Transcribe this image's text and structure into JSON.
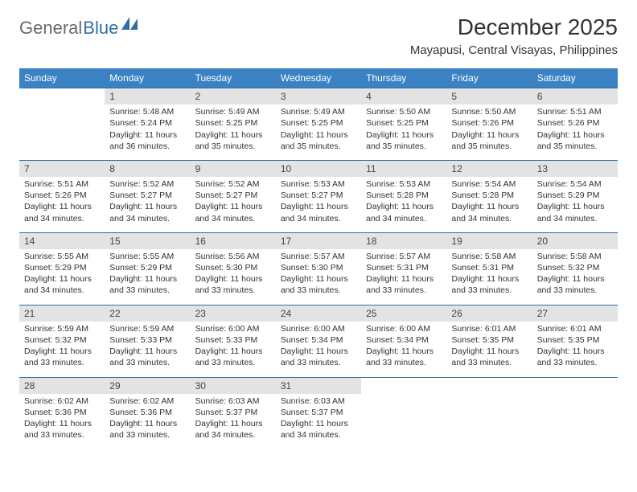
{
  "brand": {
    "part1": "General",
    "part2": "Blue"
  },
  "title": "December 2025",
  "subtitle": "Mayapusi, Central Visayas, Philippines",
  "colors": {
    "header_bg": "#3a82c4",
    "header_text": "#ffffff",
    "row_divider": "#2f6fa7",
    "daynum_bg": "#e3e3e3",
    "body_text": "#333333",
    "background": "#ffffff",
    "logo_gray": "#6a6a6a",
    "logo_blue": "#2f6fa7"
  },
  "typography": {
    "title_fontsize": 28,
    "subtitle_fontsize": 15,
    "th_fontsize": 12,
    "cell_fontsize": 10.5
  },
  "weekdays": [
    "Sunday",
    "Monday",
    "Tuesday",
    "Wednesday",
    "Thursday",
    "Friday",
    "Saturday"
  ],
  "weeks": [
    [
      {
        "day": "",
        "lines": []
      },
      {
        "day": "1",
        "lines": [
          "Sunrise: 5:48 AM",
          "Sunset: 5:24 PM",
          "Daylight: 11 hours and 36 minutes."
        ]
      },
      {
        "day": "2",
        "lines": [
          "Sunrise: 5:49 AM",
          "Sunset: 5:25 PM",
          "Daylight: 11 hours and 35 minutes."
        ]
      },
      {
        "day": "3",
        "lines": [
          "Sunrise: 5:49 AM",
          "Sunset: 5:25 PM",
          "Daylight: 11 hours and 35 minutes."
        ]
      },
      {
        "day": "4",
        "lines": [
          "Sunrise: 5:50 AM",
          "Sunset: 5:25 PM",
          "Daylight: 11 hours and 35 minutes."
        ]
      },
      {
        "day": "5",
        "lines": [
          "Sunrise: 5:50 AM",
          "Sunset: 5:26 PM",
          "Daylight: 11 hours and 35 minutes."
        ]
      },
      {
        "day": "6",
        "lines": [
          "Sunrise: 5:51 AM",
          "Sunset: 5:26 PM",
          "Daylight: 11 hours and 35 minutes."
        ]
      }
    ],
    [
      {
        "day": "7",
        "lines": [
          "Sunrise: 5:51 AM",
          "Sunset: 5:26 PM",
          "Daylight: 11 hours and 34 minutes."
        ]
      },
      {
        "day": "8",
        "lines": [
          "Sunrise: 5:52 AM",
          "Sunset: 5:27 PM",
          "Daylight: 11 hours and 34 minutes."
        ]
      },
      {
        "day": "9",
        "lines": [
          "Sunrise: 5:52 AM",
          "Sunset: 5:27 PM",
          "Daylight: 11 hours and 34 minutes."
        ]
      },
      {
        "day": "10",
        "lines": [
          "Sunrise: 5:53 AM",
          "Sunset: 5:27 PM",
          "Daylight: 11 hours and 34 minutes."
        ]
      },
      {
        "day": "11",
        "lines": [
          "Sunrise: 5:53 AM",
          "Sunset: 5:28 PM",
          "Daylight: 11 hours and 34 minutes."
        ]
      },
      {
        "day": "12",
        "lines": [
          "Sunrise: 5:54 AM",
          "Sunset: 5:28 PM",
          "Daylight: 11 hours and 34 minutes."
        ]
      },
      {
        "day": "13",
        "lines": [
          "Sunrise: 5:54 AM",
          "Sunset: 5:29 PM",
          "Daylight: 11 hours and 34 minutes."
        ]
      }
    ],
    [
      {
        "day": "14",
        "lines": [
          "Sunrise: 5:55 AM",
          "Sunset: 5:29 PM",
          "Daylight: 11 hours and 34 minutes."
        ]
      },
      {
        "day": "15",
        "lines": [
          "Sunrise: 5:55 AM",
          "Sunset: 5:29 PM",
          "Daylight: 11 hours and 33 minutes."
        ]
      },
      {
        "day": "16",
        "lines": [
          "Sunrise: 5:56 AM",
          "Sunset: 5:30 PM",
          "Daylight: 11 hours and 33 minutes."
        ]
      },
      {
        "day": "17",
        "lines": [
          "Sunrise: 5:57 AM",
          "Sunset: 5:30 PM",
          "Daylight: 11 hours and 33 minutes."
        ]
      },
      {
        "day": "18",
        "lines": [
          "Sunrise: 5:57 AM",
          "Sunset: 5:31 PM",
          "Daylight: 11 hours and 33 minutes."
        ]
      },
      {
        "day": "19",
        "lines": [
          "Sunrise: 5:58 AM",
          "Sunset: 5:31 PM",
          "Daylight: 11 hours and 33 minutes."
        ]
      },
      {
        "day": "20",
        "lines": [
          "Sunrise: 5:58 AM",
          "Sunset: 5:32 PM",
          "Daylight: 11 hours and 33 minutes."
        ]
      }
    ],
    [
      {
        "day": "21",
        "lines": [
          "Sunrise: 5:59 AM",
          "Sunset: 5:32 PM",
          "Daylight: 11 hours and 33 minutes."
        ]
      },
      {
        "day": "22",
        "lines": [
          "Sunrise: 5:59 AM",
          "Sunset: 5:33 PM",
          "Daylight: 11 hours and 33 minutes."
        ]
      },
      {
        "day": "23",
        "lines": [
          "Sunrise: 6:00 AM",
          "Sunset: 5:33 PM",
          "Daylight: 11 hours and 33 minutes."
        ]
      },
      {
        "day": "24",
        "lines": [
          "Sunrise: 6:00 AM",
          "Sunset: 5:34 PM",
          "Daylight: 11 hours and 33 minutes."
        ]
      },
      {
        "day": "25",
        "lines": [
          "Sunrise: 6:00 AM",
          "Sunset: 5:34 PM",
          "Daylight: 11 hours and 33 minutes."
        ]
      },
      {
        "day": "26",
        "lines": [
          "Sunrise: 6:01 AM",
          "Sunset: 5:35 PM",
          "Daylight: 11 hours and 33 minutes."
        ]
      },
      {
        "day": "27",
        "lines": [
          "Sunrise: 6:01 AM",
          "Sunset: 5:35 PM",
          "Daylight: 11 hours and 33 minutes."
        ]
      }
    ],
    [
      {
        "day": "28",
        "lines": [
          "Sunrise: 6:02 AM",
          "Sunset: 5:36 PM",
          "Daylight: 11 hours and 33 minutes."
        ]
      },
      {
        "day": "29",
        "lines": [
          "Sunrise: 6:02 AM",
          "Sunset: 5:36 PM",
          "Daylight: 11 hours and 33 minutes."
        ]
      },
      {
        "day": "30",
        "lines": [
          "Sunrise: 6:03 AM",
          "Sunset: 5:37 PM",
          "Daylight: 11 hours and 34 minutes."
        ]
      },
      {
        "day": "31",
        "lines": [
          "Sunrise: 6:03 AM",
          "Sunset: 5:37 PM",
          "Daylight: 11 hours and 34 minutes."
        ]
      },
      {
        "day": "",
        "lines": []
      },
      {
        "day": "",
        "lines": []
      },
      {
        "day": "",
        "lines": []
      }
    ]
  ]
}
